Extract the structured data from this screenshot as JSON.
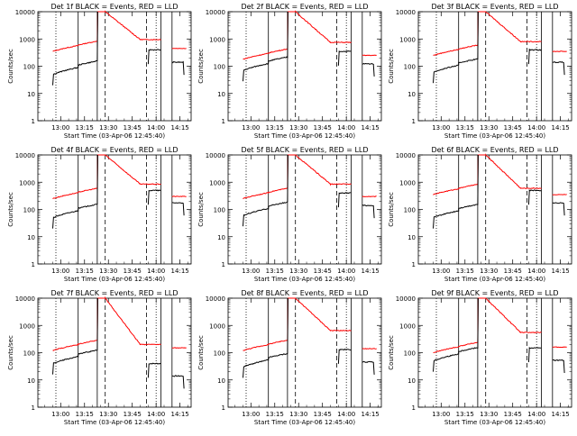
{
  "chart_data": {
    "type": "line",
    "yscale": "log",
    "ylim": [
      1,
      10000
    ],
    "ylabel": "Counts/sec",
    "xlabel": "Start Time (03-Apr-06 12:45:40)",
    "x_ticks": [
      "13:00",
      "13:15",
      "13:30",
      "13:45",
      "14:00",
      "14:15"
    ],
    "y_ticks": [
      "1",
      "10",
      "100",
      "1000",
      "10000"
    ],
    "series_colors": {
      "events": "#000000",
      "lld": "#ff0000"
    },
    "vertical_markers": [
      {
        "time": "12:57",
        "style": "dotted"
      },
      {
        "time": "13:11",
        "style": "solid"
      },
      {
        "time": "13:23",
        "style": "solid"
      },
      {
        "time": "13:28",
        "style": "dashed"
      },
      {
        "time": "13:54",
        "style": "dashed"
      },
      {
        "time": "14:00",
        "style": "dotted"
      },
      {
        "time": "14:03",
        "style": "solid"
      },
      {
        "time": "14:10",
        "style": "solid"
      }
    ],
    "panels": [
      {
        "title": "Det 1f BLACK = Events, RED = LLD",
        "events_base": 50,
        "lld_base": 350,
        "lld_peak": 10000,
        "lld_flat": 950,
        "events_end": 400,
        "lld_end": 450
      },
      {
        "title": "Det 2f BLACK = Events, RED = LLD",
        "events_base": 70,
        "lld_base": 180,
        "lld_peak": 10000,
        "lld_flat": 750,
        "events_end": 350,
        "lld_end": 250
      },
      {
        "title": "Det 3f BLACK = Events, RED = LLD",
        "events_base": 60,
        "lld_base": 250,
        "lld_peak": 10000,
        "lld_flat": 800,
        "events_end": 400,
        "lld_end": 350
      },
      {
        "title": "Det 4f BLACK = Events, RED = LLD",
        "events_base": 50,
        "lld_base": 250,
        "lld_peak": 10000,
        "lld_flat": 850,
        "events_end": 500,
        "lld_end": 300
      },
      {
        "title": "Det 5f BLACK = Events, RED = LLD",
        "events_base": 60,
        "lld_base": 250,
        "lld_peak": 10000,
        "lld_flat": 850,
        "events_end": 400,
        "lld_end": 300
      },
      {
        "title": "Det 6f BLACK = Events, RED = LLD",
        "events_base": 50,
        "lld_base": 350,
        "lld_peak": 10000,
        "lld_flat": 600,
        "events_end": 500,
        "lld_end": 350
      },
      {
        "title": "Det 7f BLACK = Events, RED = LLD",
        "events_base": 40,
        "lld_base": 120,
        "lld_peak": 10000,
        "lld_flat": 200,
        "events_end": 40,
        "lld_end": 150
      },
      {
        "title": "Det 8f BLACK = Events, RED = LLD",
        "events_base": 30,
        "lld_base": 120,
        "lld_peak": 10000,
        "lld_flat": 650,
        "events_end": 130,
        "lld_end": 140
      },
      {
        "title": "Det 9f BLACK = Events, RED = LLD",
        "events_base": 50,
        "lld_base": 100,
        "lld_peak": 10000,
        "lld_flat": 550,
        "events_end": 150,
        "lld_end": 160
      }
    ]
  }
}
